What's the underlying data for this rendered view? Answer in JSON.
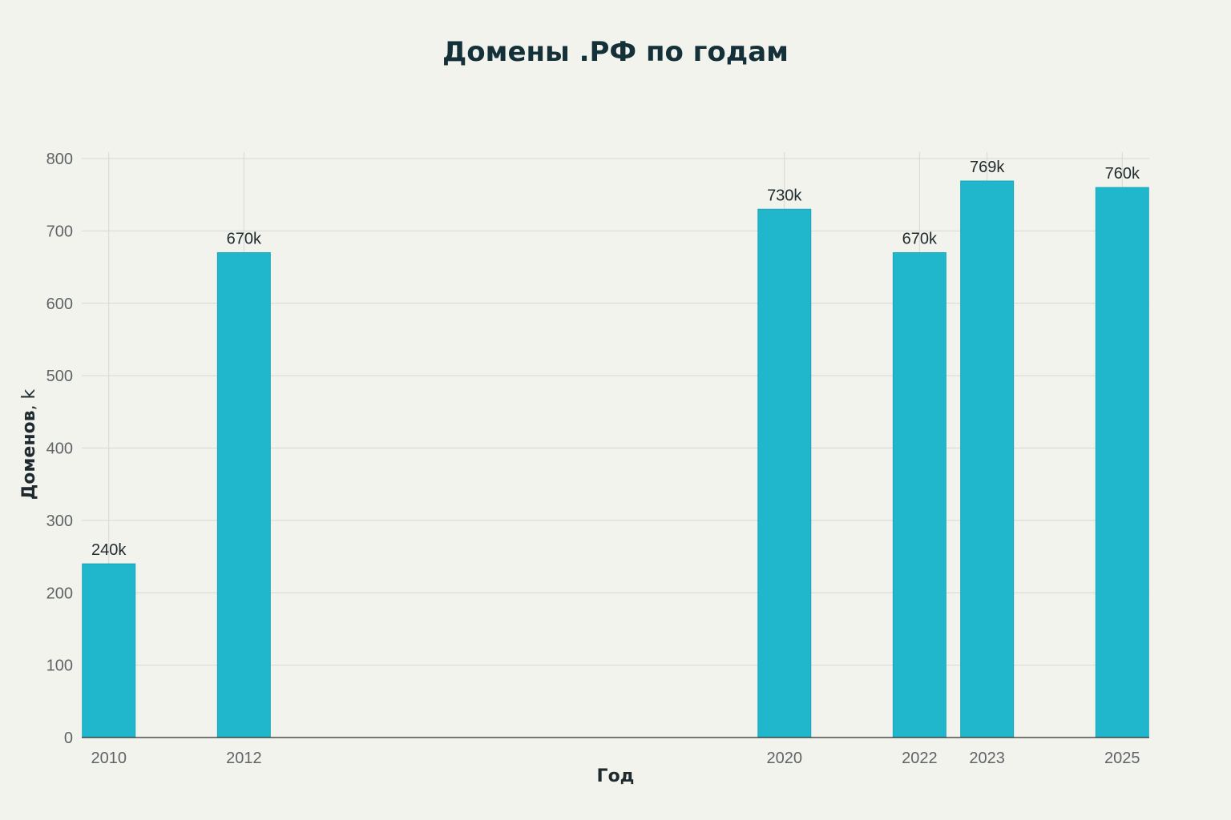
{
  "chart_data": {
    "type": "bar",
    "title": "Домены .РФ по годам",
    "xlabel": "Год",
    "ylabel_bold": "Доменов",
    "ylabel_rest": ", k",
    "x_numeric": true,
    "x": [
      2010,
      2012,
      2020,
      2022,
      2023,
      2025
    ],
    "categories": [
      "2010",
      "2012",
      "2020",
      "2022",
      "2023",
      "2025"
    ],
    "values": [
      240,
      670,
      730,
      670,
      769,
      760
    ],
    "data_labels": [
      "240k",
      "670k",
      "730k",
      "670k",
      "769k",
      "760k"
    ],
    "xlim": [
      2009.6,
      2025.4
    ],
    "ylim": [
      0,
      800
    ],
    "yticks": [
      0,
      100,
      200,
      300,
      400,
      500,
      600,
      700,
      800
    ],
    "grid": true,
    "bar_color": "#20b7cc",
    "background": "#f3f3ee"
  }
}
